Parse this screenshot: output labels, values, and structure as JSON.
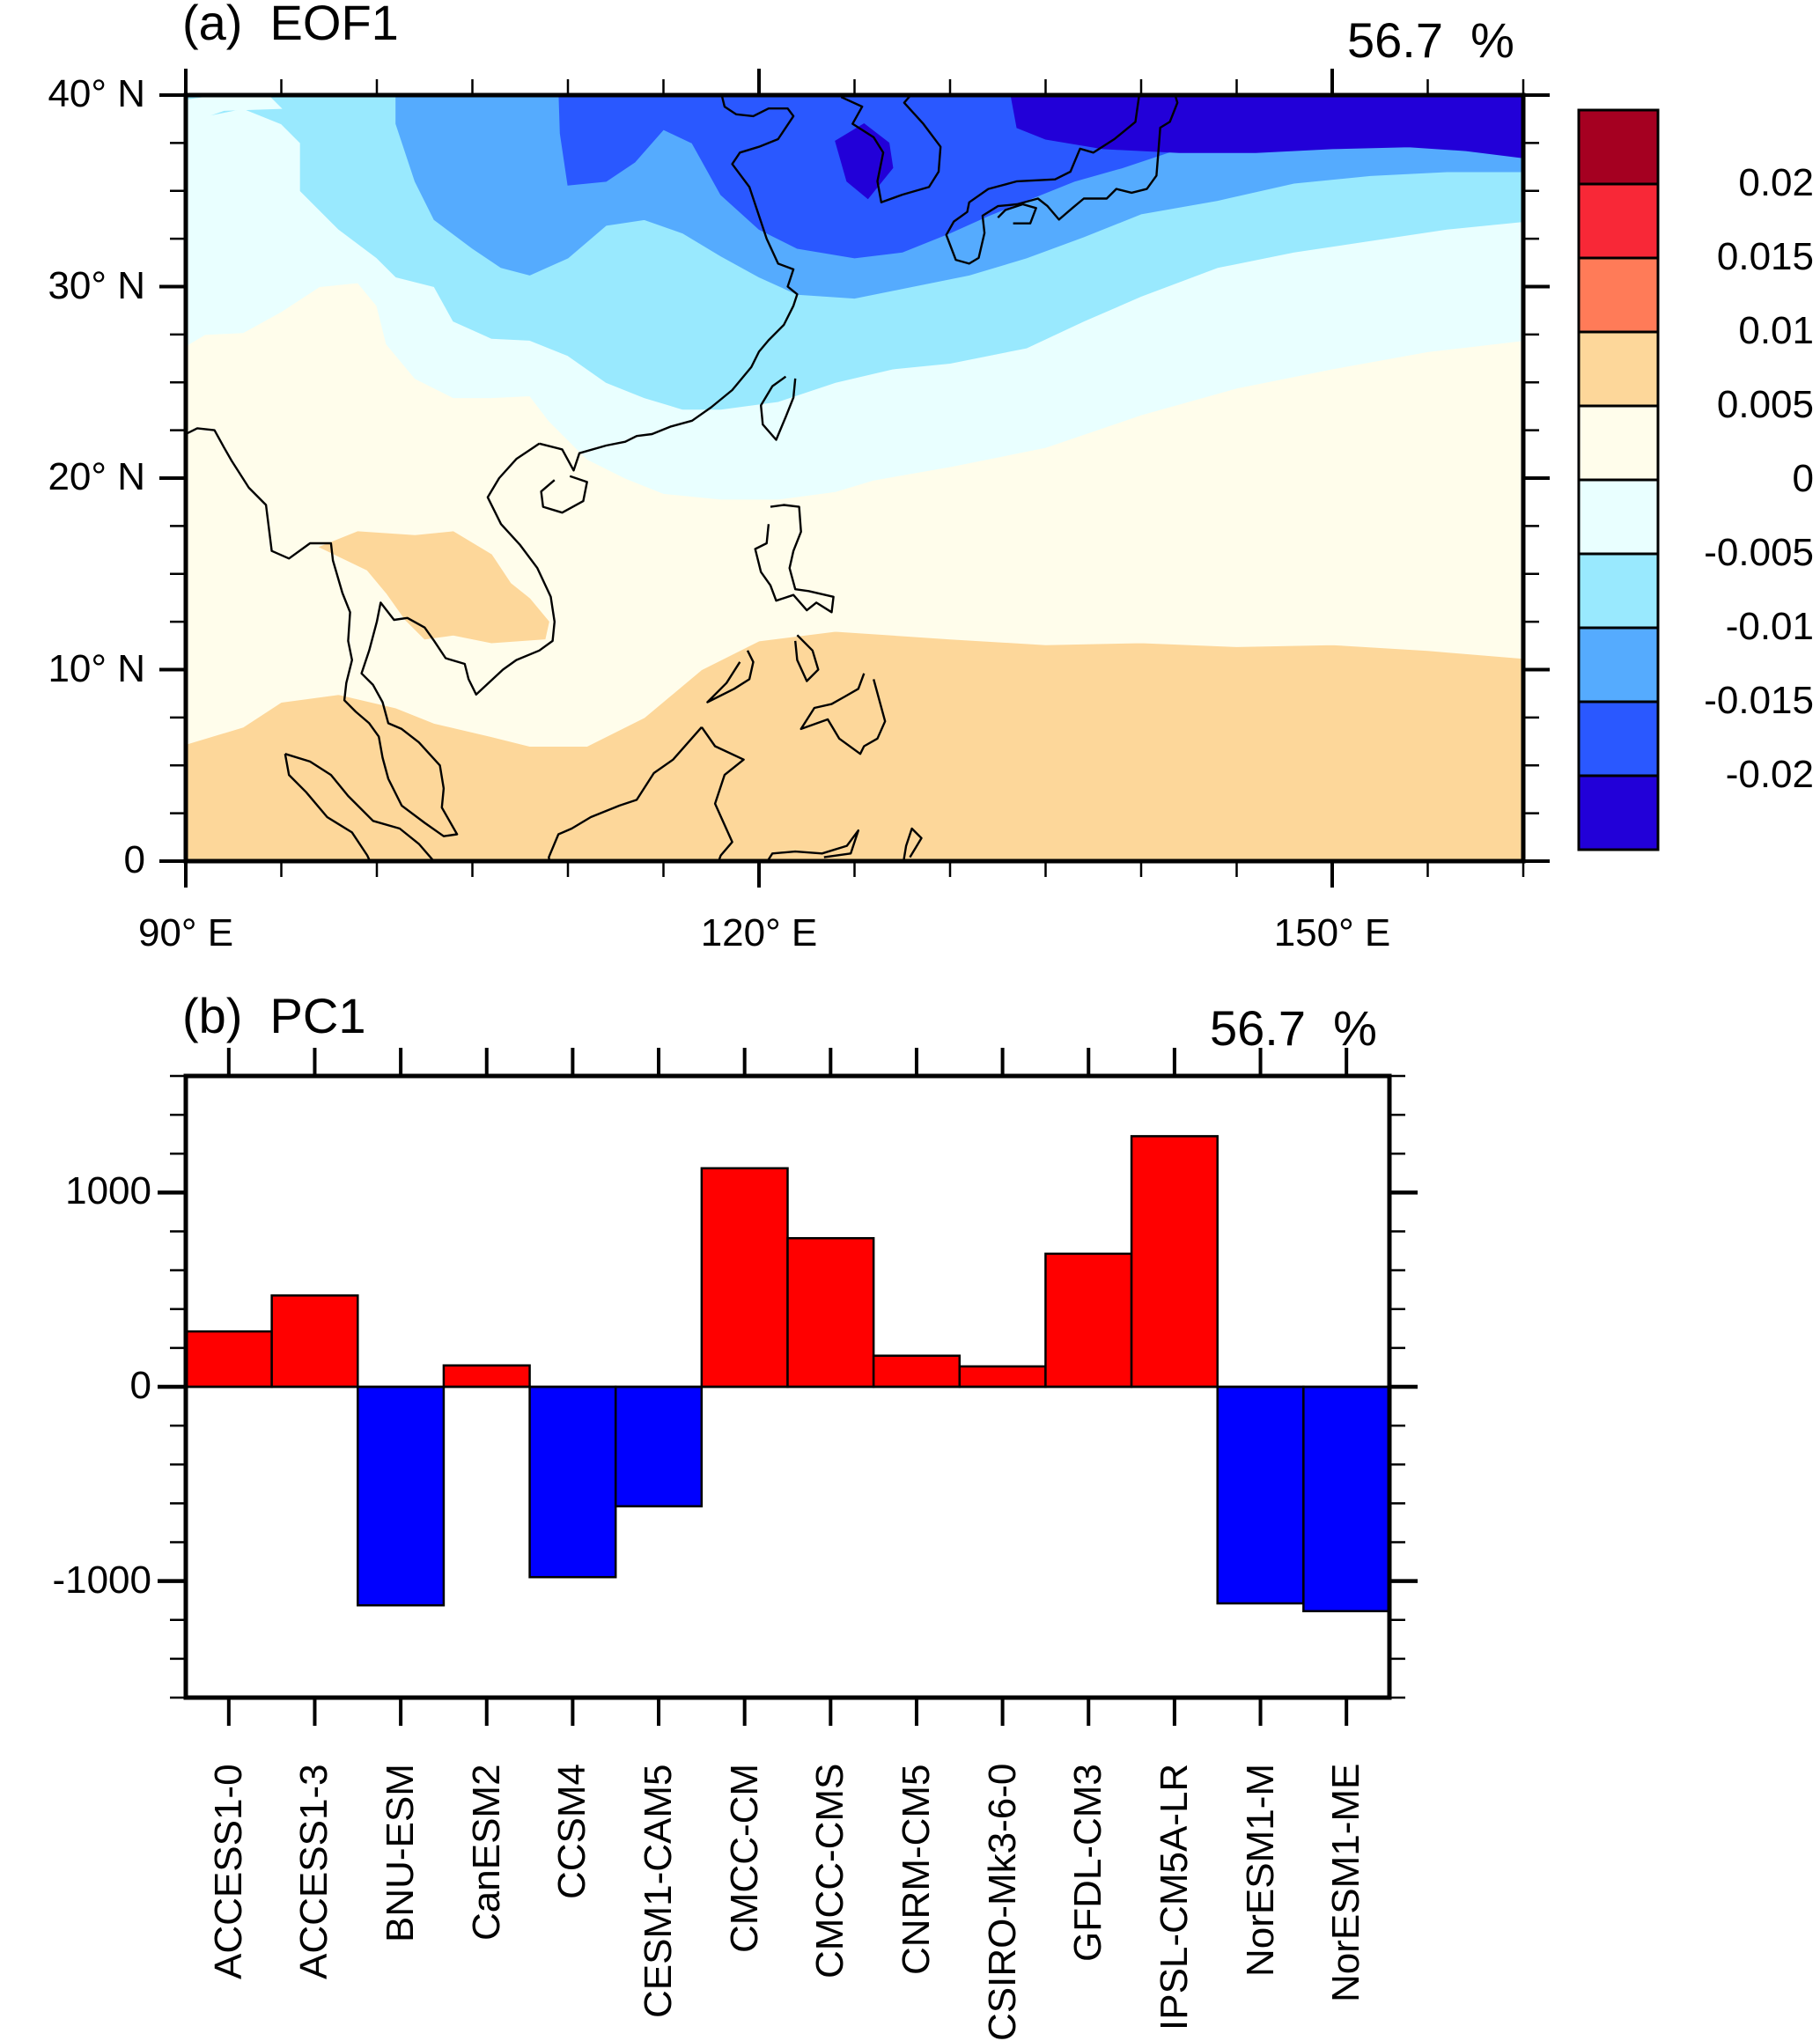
{
  "chart_data": [
    {
      "type": "heatmap",
      "panel": "(a)",
      "title": "(a)  EOF1",
      "variance_label": "56.7  %",
      "variance_explained_percent": 56.7,
      "map": {
        "lon_range": [
          90,
          160
        ],
        "lat_range": [
          0,
          40
        ],
        "x_ticks": [
          {
            "value": 90,
            "label": "90° E"
          },
          {
            "value": 120,
            "label": "120° E"
          },
          {
            "value": 150,
            "label": "150° E"
          }
        ],
        "y_ticks": [
          {
            "value": 0,
            "label": "0"
          },
          {
            "value": 10,
            "label": "10° N"
          },
          {
            "value": 20,
            "label": "20° N"
          },
          {
            "value": 30,
            "label": "30° N"
          },
          {
            "value": 40,
            "label": "40° N"
          }
        ],
        "pattern_description": "Negative loadings (blue) in the north over Korea/Japan/East China Sea with minimum below -0.02 near Korea; near-zero over South China Sea; positive (0.005–0.01) band south of ~10°N and over Indochina."
      },
      "colorbar": {
        "levels": [
          "0.02",
          "0.015",
          "0.01",
          "0.005",
          "0",
          "-0.005",
          "-0.01",
          "-0.015",
          "-0.02"
        ],
        "colors": [
          "#A50021",
          "#F82837",
          "#FF7B58",
          "#FDD79A",
          "#FFFDEB",
          "#E9FFFF",
          "#99E9FE",
          "#55ABFE",
          "#2A58FF",
          "#2200D8"
        ]
      }
    },
    {
      "type": "bar",
      "panel": "(b)",
      "title": "(b)  PC1",
      "variance_label": "56.7  %",
      "variance_explained_percent": 56.7,
      "categories": [
        "ACCESS1-0",
        "ACCESS1-3",
        "BNU-ESM",
        "CanESM2",
        "CCSM4",
        "CESM1-CAM5",
        "CMCC-CM",
        "CMCC-CMS",
        "CNRM-CM5",
        "CSIRO-Mk3-6-0",
        "GFDL-CM3",
        "IPSL-CM5A-LR",
        "NorESM1-M",
        "NorESM1-ME"
      ],
      "values": [
        285,
        470,
        -1125,
        110,
        -980,
        -615,
        1125,
        765,
        160,
        105,
        685,
        1290,
        -1115,
        -1155
      ],
      "ylim": [
        -1600,
        1600
      ],
      "y_ticks": [
        {
          "value": 1000,
          "label": "1000"
        },
        {
          "value": 0,
          "label": "0"
        },
        {
          "value": -1000,
          "label": "-1000"
        }
      ],
      "positive_color": "#FF0000",
      "negative_color": "#0000FF",
      "xlabel": "",
      "ylabel": ""
    }
  ]
}
